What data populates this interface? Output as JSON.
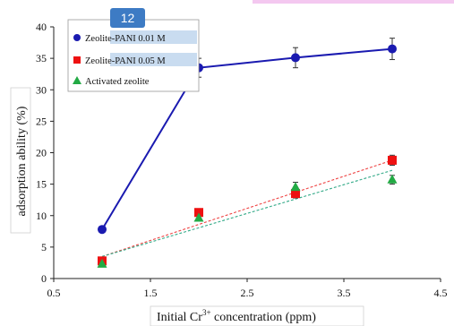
{
  "overlay": {
    "badge": "12",
    "highlight_color": "#c9dcf0",
    "top_strip_color": "#f4c8f0"
  },
  "chart_data": {
    "type": "scatter",
    "title": "",
    "xlabel": "Initial Cr",
    "xlabel_superscript": "3+",
    "xlabel_suffix": " concentration (ppm)",
    "ylabel": "adsorption ability (%)",
    "xlim": [
      0.5,
      4.5
    ],
    "ylim": [
      0,
      40
    ],
    "x_ticks": [
      "0.5",
      "1.5",
      "2.5",
      "3.5",
      "4.5"
    ],
    "y_ticks": [
      "0",
      "5",
      "10",
      "15",
      "20",
      "25",
      "30",
      "35",
      "40"
    ],
    "grid": false,
    "legend_position": "top-left",
    "series": [
      {
        "name": "Zeolite-PANI 0.01 M",
        "marker": "circle",
        "color": "#1a1ab0",
        "line": "solid",
        "x": [
          1,
          2,
          3,
          4
        ],
        "y": [
          7.8,
          33.5,
          35.1,
          36.5
        ],
        "error": [
          0,
          1.5,
          1.6,
          1.7
        ]
      },
      {
        "name": "Zeolite-PANI 0.05 M",
        "marker": "square",
        "color": "#ee1111",
        "line": "none",
        "x": [
          1,
          2,
          3,
          4
        ],
        "y": [
          2.8,
          10.5,
          13.5,
          18.8
        ],
        "error": [
          0,
          0,
          0.7,
          0.8
        ],
        "trendline": {
          "style": "dotted",
          "color": "#ee4444",
          "from": [
            1,
            3.5
          ],
          "to": [
            4,
            18.8
          ]
        }
      },
      {
        "name": "Activated zeolite",
        "marker": "triangle",
        "color": "#22aa44",
        "line": "none",
        "x": [
          1,
          2,
          3,
          4
        ],
        "y": [
          2.3,
          9.6,
          14.5,
          15.7
        ],
        "error": [
          0,
          0,
          0.8,
          0.7
        ],
        "trendline": {
          "style": "dotted",
          "color": "#33aa88",
          "from": [
            1,
            3.5
          ],
          "to": [
            4,
            17.2
          ]
        }
      }
    ]
  }
}
